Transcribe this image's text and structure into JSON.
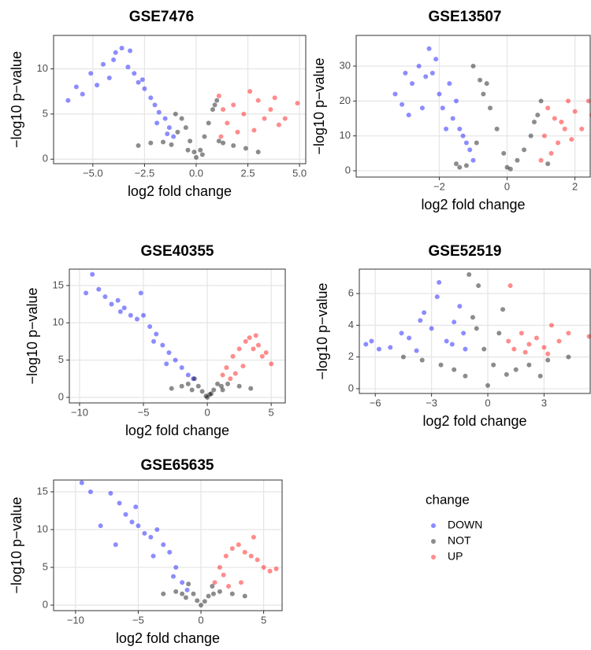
{
  "legend": {
    "title": "change"
  },
  "chart_data": [
    {
      "type": "scatter",
      "title": "GSE7476",
      "x_label": "log2 fold change",
      "y_label": "−log10 p−value",
      "grid": true,
      "xlim": [
        -6.9,
        5.3
      ],
      "ylim": [
        -0.5,
        13.7
      ],
      "xticks": [
        {
          "value": -5,
          "label": "−5.0"
        },
        {
          "value": -2.5,
          "label": "−2.5"
        },
        {
          "value": 0,
          "label": "0.0"
        },
        2.5,
        {
          "value": 5,
          "label": "5.0"
        }
      ],
      "yticks": [
        0,
        5,
        10
      ],
      "series": [
        {
          "name": "DOWN",
          "color": "#0000ff",
          "x": [
            -6.2,
            -5.8,
            -5.5,
            -5.1,
            -4.8,
            -4.5,
            -4.2,
            -3.9,
            -3.6,
            -3.3,
            -3.0,
            -2.8,
            -2.5,
            -2.2,
            -2.0,
            -1.8,
            -1.5,
            -1.3,
            -1.1,
            -4.0,
            -3.2,
            -2.6,
            -1.9,
            -1.4
          ],
          "values": [
            6.5,
            8,
            7.2,
            9.5,
            8.2,
            10.5,
            9,
            11.8,
            12.3,
            10.2,
            9.5,
            8.5,
            7.8,
            6.8,
            6,
            5.2,
            4.5,
            3.5,
            2.5,
            11,
            12,
            8.8,
            4,
            2.8
          ]
        },
        {
          "name": "NOT",
          "color": "#000000",
          "x": [
            -2.8,
            -2.2,
            -1.6,
            -1.2,
            -0.9,
            -0.7,
            -0.5,
            -0.3,
            -0.1,
            0,
            0.2,
            0.4,
            0.6,
            0.8,
            1.0,
            1.3,
            1.8,
            2.4,
            3.0,
            -0.4,
            0.3,
            -1.0,
            1.1,
            0.9
          ],
          "values": [
            1.5,
            1.8,
            1.9,
            1.6,
            3,
            4.5,
            3.5,
            2,
            0.8,
            0.2,
            1,
            2.5,
            4,
            5.5,
            6.5,
            1.8,
            1.5,
            1.2,
            0.8,
            1,
            0.5,
            5,
            2,
            6
          ]
        },
        {
          "name": "UP",
          "color": "#ff0000",
          "x": [
            1.1,
            1.3,
            1.5,
            1.8,
            2.0,
            2.3,
            2.6,
            3.0,
            3.3,
            3.6,
            4.0,
            4.3,
            4.9,
            1.2,
            2.8,
            3.8
          ],
          "values": [
            7,
            5.5,
            4,
            6,
            3,
            5,
            7.5,
            6.5,
            4.5,
            5.5,
            3.8,
            4.5,
            6.2,
            2.5,
            3.2,
            6.8
          ]
        }
      ]
    },
    {
      "type": "scatter",
      "title": "GSE13507",
      "x_label": "log2 fold change",
      "y_label": "−log10 p−value",
      "grid": true,
      "xlim": [
        -4.45,
        2.45
      ],
      "ylim": [
        -1.8,
        38.8
      ],
      "xticks": [
        {
          "value": -2,
          "label": "−2"
        },
        0,
        2
      ],
      "yticks": [
        0,
        10,
        20,
        30
      ],
      "series": [
        {
          "name": "DOWN",
          "color": "#0000ff",
          "x": [
            -3.3,
            -3.1,
            -3.0,
            -2.8,
            -2.6,
            -2.4,
            -2.3,
            -2.1,
            -2.0,
            -1.9,
            -1.7,
            -1.6,
            -1.5,
            -1.4,
            -1.3,
            -1.2,
            -1.1,
            -1.0,
            -2.5,
            -1.8,
            -2.9,
            -2.2
          ],
          "values": [
            22,
            19,
            28,
            25,
            30,
            27,
            35,
            32,
            22,
            18,
            25,
            15,
            20,
            12,
            10,
            8,
            6,
            3,
            18,
            12,
            16,
            28
          ]
        },
        {
          "name": "NOT",
          "color": "#000000",
          "x": [
            -1.5,
            -1.2,
            -1.0,
            -0.8,
            -0.7,
            -0.5,
            -0.3,
            -0.1,
            0,
            0.1,
            0.3,
            0.5,
            0.7,
            0.9,
            1.0,
            1.2,
            -0.9,
            -0.6,
            0.8,
            -1.4
          ],
          "values": [
            2,
            1.5,
            30,
            26,
            22,
            18,
            12,
            5,
            1,
            0.5,
            3,
            6,
            10,
            16,
            20,
            2,
            8,
            25,
            14,
            1
          ]
        },
        {
          "name": "UP",
          "color": "#ff0000",
          "x": [
            1.0,
            1.1,
            1.2,
            1.4,
            1.5,
            1.7,
            1.8,
            2.0,
            2.2,
            2.4,
            2.5,
            1.3,
            1.6,
            1.9
          ],
          "values": [
            3,
            10,
            18,
            15,
            8,
            12,
            20,
            17,
            12,
            20,
            16,
            5,
            14,
            9
          ]
        }
      ]
    },
    {
      "type": "scatter",
      "title": "GSE40355",
      "x_label": "log2 fold change",
      "y_label": "−log10 p−value",
      "grid": true,
      "xlim": [
        -10.8,
        6.1
      ],
      "ylim": [
        -0.74,
        17.2
      ],
      "xticks": [
        {
          "value": -10,
          "label": "−10"
        },
        {
          "value": -5,
          "label": "−5"
        },
        0,
        5
      ],
      "yticks": [
        0,
        5,
        10,
        15
      ],
      "series": [
        {
          "name": "DOWN",
          "color": "#0000ff",
          "x": [
            -9.5,
            -9,
            -8.5,
            -8,
            -7.5,
            -7,
            -6.5,
            -6,
            -5.5,
            -5,
            -4.5,
            -4,
            -3.5,
            -3,
            -2.5,
            -2,
            -1.5,
            -1.1,
            -6.8,
            -5.2,
            -4.2,
            -3.2
          ],
          "values": [
            14,
            16.5,
            14.5,
            13.5,
            12.5,
            13,
            12,
            11,
            10.5,
            11,
            9.5,
            8.5,
            7,
            6,
            5,
            4,
            3,
            2.5,
            11.5,
            14,
            7.5,
            4.5
          ]
        },
        {
          "name": "NOT",
          "color": "#000000",
          "x": [
            -2.8,
            -2,
            -1.5,
            -1,
            -0.7,
            -0.4,
            -0.1,
            0,
            0.2,
            0.5,
            0.8,
            1.1,
            1.6,
            2.5,
            3.4,
            -1.2,
            1.2,
            0.3
          ],
          "values": [
            1.2,
            1.5,
            1.8,
            2.5,
            1.5,
            0.8,
            0.2,
            0,
            0.4,
            1,
            1.8,
            1.5,
            1.8,
            1.5,
            1.2,
            1,
            1,
            0.5
          ]
        },
        {
          "name": "UP",
          "color": "#ff0000",
          "x": [
            1.2,
            1.5,
            2,
            2.5,
            3,
            3.3,
            3.6,
            4,
            4.3,
            4.6,
            5,
            2.2,
            2.8,
            3.8,
            1.8
          ],
          "values": [
            3,
            4,
            5.5,
            6.5,
            7.5,
            8,
            6.5,
            7,
            5.5,
            6,
            4.5,
            3.2,
            4.2,
            8.3,
            2.5
          ]
        }
      ]
    },
    {
      "type": "scatter",
      "title": "GSE52519",
      "x_label": "log2 fold change",
      "y_label": "−log10 p−value",
      "grid": true,
      "xlim": [
        -6.85,
        5.46
      ],
      "ylim": [
        -0.3,
        7.54
      ],
      "xticks": [
        {
          "value": -6,
          "label": "−6"
        },
        {
          "value": -3,
          "label": "−3"
        },
        0,
        3
      ],
      "yticks": [
        0,
        2,
        4,
        6
      ],
      "series": [
        {
          "name": "DOWN",
          "color": "#0000ff",
          "x": [
            -6.5,
            -6.2,
            -5.8,
            -5.2,
            -4.6,
            -4.2,
            -3.8,
            -3.4,
            -3,
            -2.6,
            -2.2,
            -1.8,
            -1.5,
            -1.2,
            -2.7,
            -1.9,
            -1.3,
            -3.6
          ],
          "values": [
            2.8,
            3,
            2.5,
            2.6,
            3.5,
            3.2,
            2.4,
            4.8,
            3.8,
            6.7,
            3,
            4.2,
            5.2,
            2.5,
            5.8,
            2.8,
            3.5,
            4.3
          ]
        },
        {
          "name": "NOT",
          "color": "#000000",
          "x": [
            -4.5,
            -3.5,
            -2.5,
            -1.8,
            -1.2,
            -0.8,
            -0.5,
            -0.2,
            0,
            0.3,
            0.6,
            1,
            1.5,
            2.2,
            3.2,
            4.3,
            -1.0,
            -0.6,
            0.8,
            2.8
          ],
          "values": [
            2,
            1.8,
            1.5,
            1.2,
            0.8,
            4.5,
            6.5,
            2.5,
            0.2,
            1.5,
            3.5,
            0.9,
            1.2,
            1.5,
            1.8,
            2,
            7.2,
            3.8,
            5,
            0.8
          ]
        },
        {
          "name": "UP",
          "color": "#ff0000",
          "x": [
            1.1,
            1.4,
            1.8,
            2.2,
            2.6,
            3,
            3.4,
            3.8,
            4.3,
            5.4,
            2,
            1.2,
            3.2
          ],
          "values": [
            3,
            2.5,
            3.5,
            2.8,
            3.2,
            2.6,
            4,
            3,
            3.5,
            3.3,
            2.3,
            6.5,
            2.2
          ]
        }
      ]
    },
    {
      "type": "scatter",
      "title": "GSE65635",
      "x_label": "log2 fold change",
      "y_label": "−log10 p−value",
      "grid": true,
      "xlim": [
        -11.75,
        6.47
      ],
      "ylim": [
        -0.73,
        16.56
      ],
      "xticks": [
        {
          "value": -10,
          "label": "−10"
        },
        {
          "value": -5,
          "label": "−5"
        },
        0,
        5
      ],
      "yticks": [
        0,
        5,
        10,
        15
      ],
      "series": [
        {
          "name": "DOWN",
          "color": "#0000ff",
          "x": [
            -9.5,
            -8.8,
            -8,
            -7.2,
            -6.5,
            -6,
            -5.5,
            -5,
            -4.5,
            -4,
            -3.5,
            -3,
            -2.5,
            -2,
            -1.5,
            -1.1,
            -6.8,
            -5.2,
            -3.8,
            -2.2
          ],
          "values": [
            16.2,
            15,
            10.5,
            14.8,
            13.5,
            12,
            11,
            10.5,
            9.5,
            9,
            10,
            8,
            7,
            5,
            3,
            2,
            8,
            13,
            6.5,
            3.8
          ]
        },
        {
          "name": "NOT",
          "color": "#000000",
          "x": [
            -3,
            -2,
            -1.5,
            -1,
            -0.6,
            -0.3,
            0,
            0.3,
            0.6,
            1,
            1.5,
            2.5,
            3.5,
            -1.2,
            0.9
          ],
          "values": [
            1.5,
            1.8,
            1.5,
            2.8,
            1.5,
            0.6,
            0,
            0.5,
            1.2,
            1.5,
            1.8,
            1.5,
            1.2,
            1,
            2.5
          ]
        },
        {
          "name": "UP",
          "color": "#ff0000",
          "x": [
            1.1,
            1.5,
            2,
            2.5,
            3,
            3.5,
            4,
            4.5,
            5,
            5.5,
            6,
            2.2,
            3.2,
            4.2,
            1.8
          ],
          "values": [
            3,
            5,
            6.5,
            7.5,
            8,
            7,
            6.5,
            6,
            5,
            4.5,
            4.8,
            2.5,
            3,
            9,
            4
          ]
        }
      ]
    }
  ]
}
